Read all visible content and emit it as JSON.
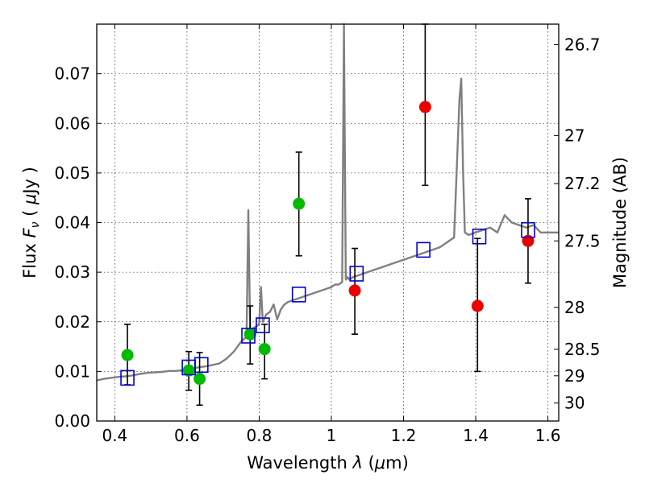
{
  "chart_data": {
    "type": "scatter",
    "title": "",
    "xlabel": "Wavelength  λ (μm)",
    "ylabel": "Flux  F_ν  ( μJy )",
    "xlabel_parts": {
      "prefix": "Wavelength  ",
      "symbol": "λ",
      "paren_open": " (",
      "unit_mu": "μ",
      "unit_rest": "m)"
    },
    "ylabel_parts": {
      "prefix": "Flux  ",
      "symbol": "F",
      "subscript": "ν",
      "paren_open": "  ( ",
      "unit_mu": "μ",
      "unit_rest": "Jy )"
    },
    "y2label": "Magnitude (AB)",
    "xlim": [
      0.35,
      1.63
    ],
    "ylim": [
      0.0,
      0.08
    ],
    "grid": true,
    "x_ticks": [
      0.4,
      0.6,
      0.8,
      1.0,
      1.2,
      1.4,
      1.6
    ],
    "x_tick_labels": [
      "0.4",
      "0.6",
      "0.8",
      "1",
      "1.2",
      "1.4",
      "1.6"
    ],
    "y_ticks": [
      0.0,
      0.01,
      0.02,
      0.03,
      0.04,
      0.05,
      0.06,
      0.07
    ],
    "y_tick_labels": [
      "0.00",
      "0.01",
      "0.02",
      "0.03",
      "0.04",
      "0.05",
      "0.06",
      "0.07"
    ],
    "mag_ticks": [
      26.7,
      27,
      27.2,
      27.5,
      28,
      28.5,
      29,
      30
    ],
    "mag_tick_labels": [
      "26.7",
      "27",
      "27.2",
      "27.5",
      "28",
      "28.5",
      "29",
      "30"
    ],
    "colors": {
      "model": "#808080",
      "green": "#00bb00",
      "red": "#ee0000",
      "square": "#0000cc",
      "errorbar": "#000000"
    },
    "model_spectrum": {
      "x": [
        0.35,
        0.37,
        0.39,
        0.41,
        0.43,
        0.45,
        0.47,
        0.49,
        0.51,
        0.53,
        0.55,
        0.57,
        0.59,
        0.61,
        0.63,
        0.65,
        0.67,
        0.69,
        0.71,
        0.73,
        0.75,
        0.765,
        0.77,
        0.775,
        0.78,
        0.79,
        0.8,
        0.805,
        0.81,
        0.82,
        0.83,
        0.84,
        0.85,
        0.86,
        0.87,
        0.88,
        0.9,
        0.92,
        0.94,
        0.96,
        0.98,
        1.0,
        1.01,
        1.02,
        1.03,
        1.035,
        1.04,
        1.045,
        1.05,
        1.06,
        1.08,
        1.1,
        1.12,
        1.14,
        1.16,
        1.18,
        1.2,
        1.22,
        1.24,
        1.26,
        1.28,
        1.3,
        1.32,
        1.34,
        1.355,
        1.36,
        1.365,
        1.37,
        1.38,
        1.4,
        1.42,
        1.44,
        1.46,
        1.48,
        1.5,
        1.52,
        1.54,
        1.56,
        1.58,
        1.6,
        1.63
      ],
      "y": [
        0.0082,
        0.0085,
        0.0087,
        0.0089,
        0.009,
        0.0092,
        0.0095,
        0.0097,
        0.0098,
        0.0099,
        0.0101,
        0.0101,
        0.0103,
        0.0105,
        0.0108,
        0.011,
        0.0113,
        0.0116,
        0.0126,
        0.014,
        0.016,
        0.017,
        0.0425,
        0.018,
        0.0185,
        0.019,
        0.0195,
        0.027,
        0.02,
        0.0215,
        0.022,
        0.0235,
        0.0205,
        0.0225,
        0.0235,
        0.024,
        0.0245,
        0.025,
        0.0255,
        0.026,
        0.0265,
        0.027,
        0.0275,
        0.0275,
        0.028,
        0.08,
        0.0285,
        0.029,
        0.0285,
        0.029,
        0.0295,
        0.03,
        0.0305,
        0.031,
        0.0315,
        0.032,
        0.0325,
        0.033,
        0.0335,
        0.034,
        0.0345,
        0.035,
        0.036,
        0.037,
        0.065,
        0.069,
        0.05,
        0.038,
        0.0375,
        0.038,
        0.0385,
        0.039,
        0.038,
        0.0415,
        0.04,
        0.0395,
        0.039,
        0.0395,
        0.038,
        0.038,
        0.038
      ]
    },
    "series": [
      {
        "marker": "circle",
        "color": "green",
        "x": [
          0.435,
          0.605,
          0.635,
          0.775,
          0.815,
          0.91
        ],
        "y": [
          0.0133,
          0.0102,
          0.0085,
          0.0175,
          0.0145,
          0.0438
        ],
        "yerr_low": [
          0.0073,
          0.0062,
          0.0032,
          0.0115,
          0.0085,
          0.0333
        ],
        "yerr_high": [
          0.0195,
          0.014,
          0.0138,
          0.0232,
          0.0195,
          0.0542
        ]
      },
      {
        "marker": "circle",
        "color": "red",
        "x": [
          1.065,
          1.26,
          1.405,
          1.545
        ],
        "y": [
          0.0263,
          0.0633,
          0.0232,
          0.0363
        ],
        "yerr_low": [
          0.0175,
          0.0475,
          0.01,
          0.0278
        ],
        "yerr_high": [
          0.0348,
          0.08,
          0.0368,
          0.0448
        ]
      },
      {
        "marker": "open-square",
        "color": "square",
        "x": [
          0.435,
          0.605,
          0.64,
          0.77,
          0.81,
          0.91,
          1.07,
          1.255,
          1.41,
          1.545
        ],
        "y": [
          0.0087,
          0.0108,
          0.0113,
          0.0172,
          0.0193,
          0.0255,
          0.0297,
          0.0345,
          0.0372,
          0.0385
        ]
      }
    ]
  }
}
